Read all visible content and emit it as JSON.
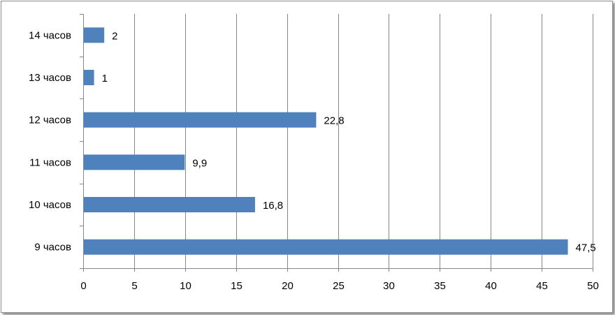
{
  "chart_data": {
    "type": "bar",
    "orientation": "horizontal",
    "categories": [
      "9 часов",
      "10 часов",
      "11 часов",
      "12 часов",
      "13 часов",
      "14 часов"
    ],
    "values": [
      47.5,
      16.8,
      9.9,
      22.8,
      1,
      2
    ],
    "value_labels": [
      "47,5",
      "16,8",
      "9,9",
      "22,8",
      "1",
      "2"
    ],
    "x_ticks": [
      "0",
      "5",
      "10",
      "15",
      "20",
      "25",
      "30",
      "35",
      "40",
      "45",
      "50"
    ],
    "xlim": [
      0,
      50
    ],
    "grid": "vertical",
    "legend": "none",
    "colors": {
      "bar": "#4f81bd",
      "grid": "#868686",
      "axis": "#868686"
    }
  }
}
